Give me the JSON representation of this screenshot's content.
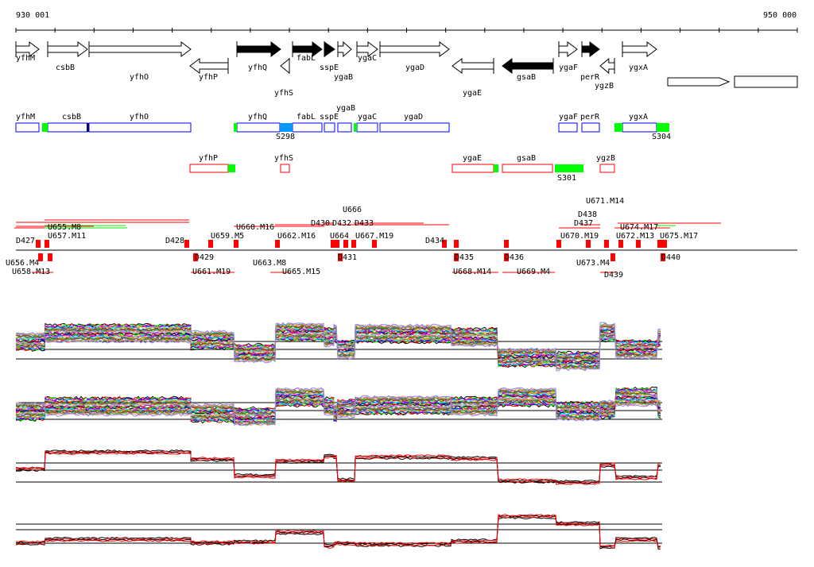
{
  "ruler": {
    "start_label": "930 001",
    "end_label": "950 000"
  },
  "genes": [
    {
      "name": "yfhM",
      "strand": "+",
      "filled": false
    },
    {
      "name": "csbB",
      "strand": "+",
      "filled": false
    },
    {
      "name": "yfhO",
      "strand": "+",
      "filled": false
    },
    {
      "name": "yfhP",
      "strand": "-",
      "filled": false
    },
    {
      "name": "yfhQ",
      "strand": "+",
      "filled": true
    },
    {
      "name": "yfhS",
      "strand": "-",
      "filled": false
    },
    {
      "name": "fabL",
      "strand": "+",
      "filled": true
    },
    {
      "name": "sspE",
      "strand": "+",
      "filled": true
    },
    {
      "name": "ygaB",
      "strand": "+",
      "filled": false
    },
    {
      "name": "ygaC",
      "strand": "+",
      "filled": false
    },
    {
      "name": "ygaD",
      "strand": "+",
      "filled": false
    },
    {
      "name": "ygaE",
      "strand": "-",
      "filled": false
    },
    {
      "name": "gsaB",
      "strand": "-",
      "filled": true
    },
    {
      "name": "ygaF",
      "strand": "+",
      "filled": false
    },
    {
      "name": "perR",
      "strand": "+",
      "filled": true
    },
    {
      "name": "ygzB",
      "strand": "-",
      "filled": false
    },
    {
      "name": "ygxA",
      "strand": "+",
      "filled": false
    }
  ],
  "forward_boxes": [
    "yfhM",
    "csbB",
    "yfhO",
    "yfhQ",
    "fabL",
    "sspE",
    "ygaB",
    "ygaC",
    "ygaD",
    "ygaF",
    "perR",
    "ygxA"
  ],
  "reverse_boxes": [
    "yfhP",
    "yfhS",
    "ygaE",
    "gsaB",
    "ygzB"
  ],
  "box_labels": [
    "S298",
    "S304",
    "S301"
  ],
  "segments_upper": [
    "D427",
    "U657.M11",
    "U655.M8",
    "D428",
    "U659.M5",
    "U660.M16",
    "U662.M16",
    "D430",
    "U664",
    "D432",
    "U666",
    "U667.M19",
    "D433",
    "D434",
    "U670.M19",
    "D437",
    "D438",
    "U671.M14",
    "U672.M13",
    "U674.M17",
    "U675.M17"
  ],
  "segments_lower": [
    "U656.M4",
    "U658.M13",
    "D429",
    "U661.M19",
    "U663.M8",
    "U665.M15",
    "D431",
    "D435",
    "U668.M14",
    "D436",
    "U669.M4",
    "U673.M4",
    "D439",
    "D440"
  ],
  "colors": {
    "forward": "#0000ff",
    "reverse": "#ff0000",
    "marker": "#00ff00",
    "shared": "#0099ff",
    "dark": "#000080"
  }
}
